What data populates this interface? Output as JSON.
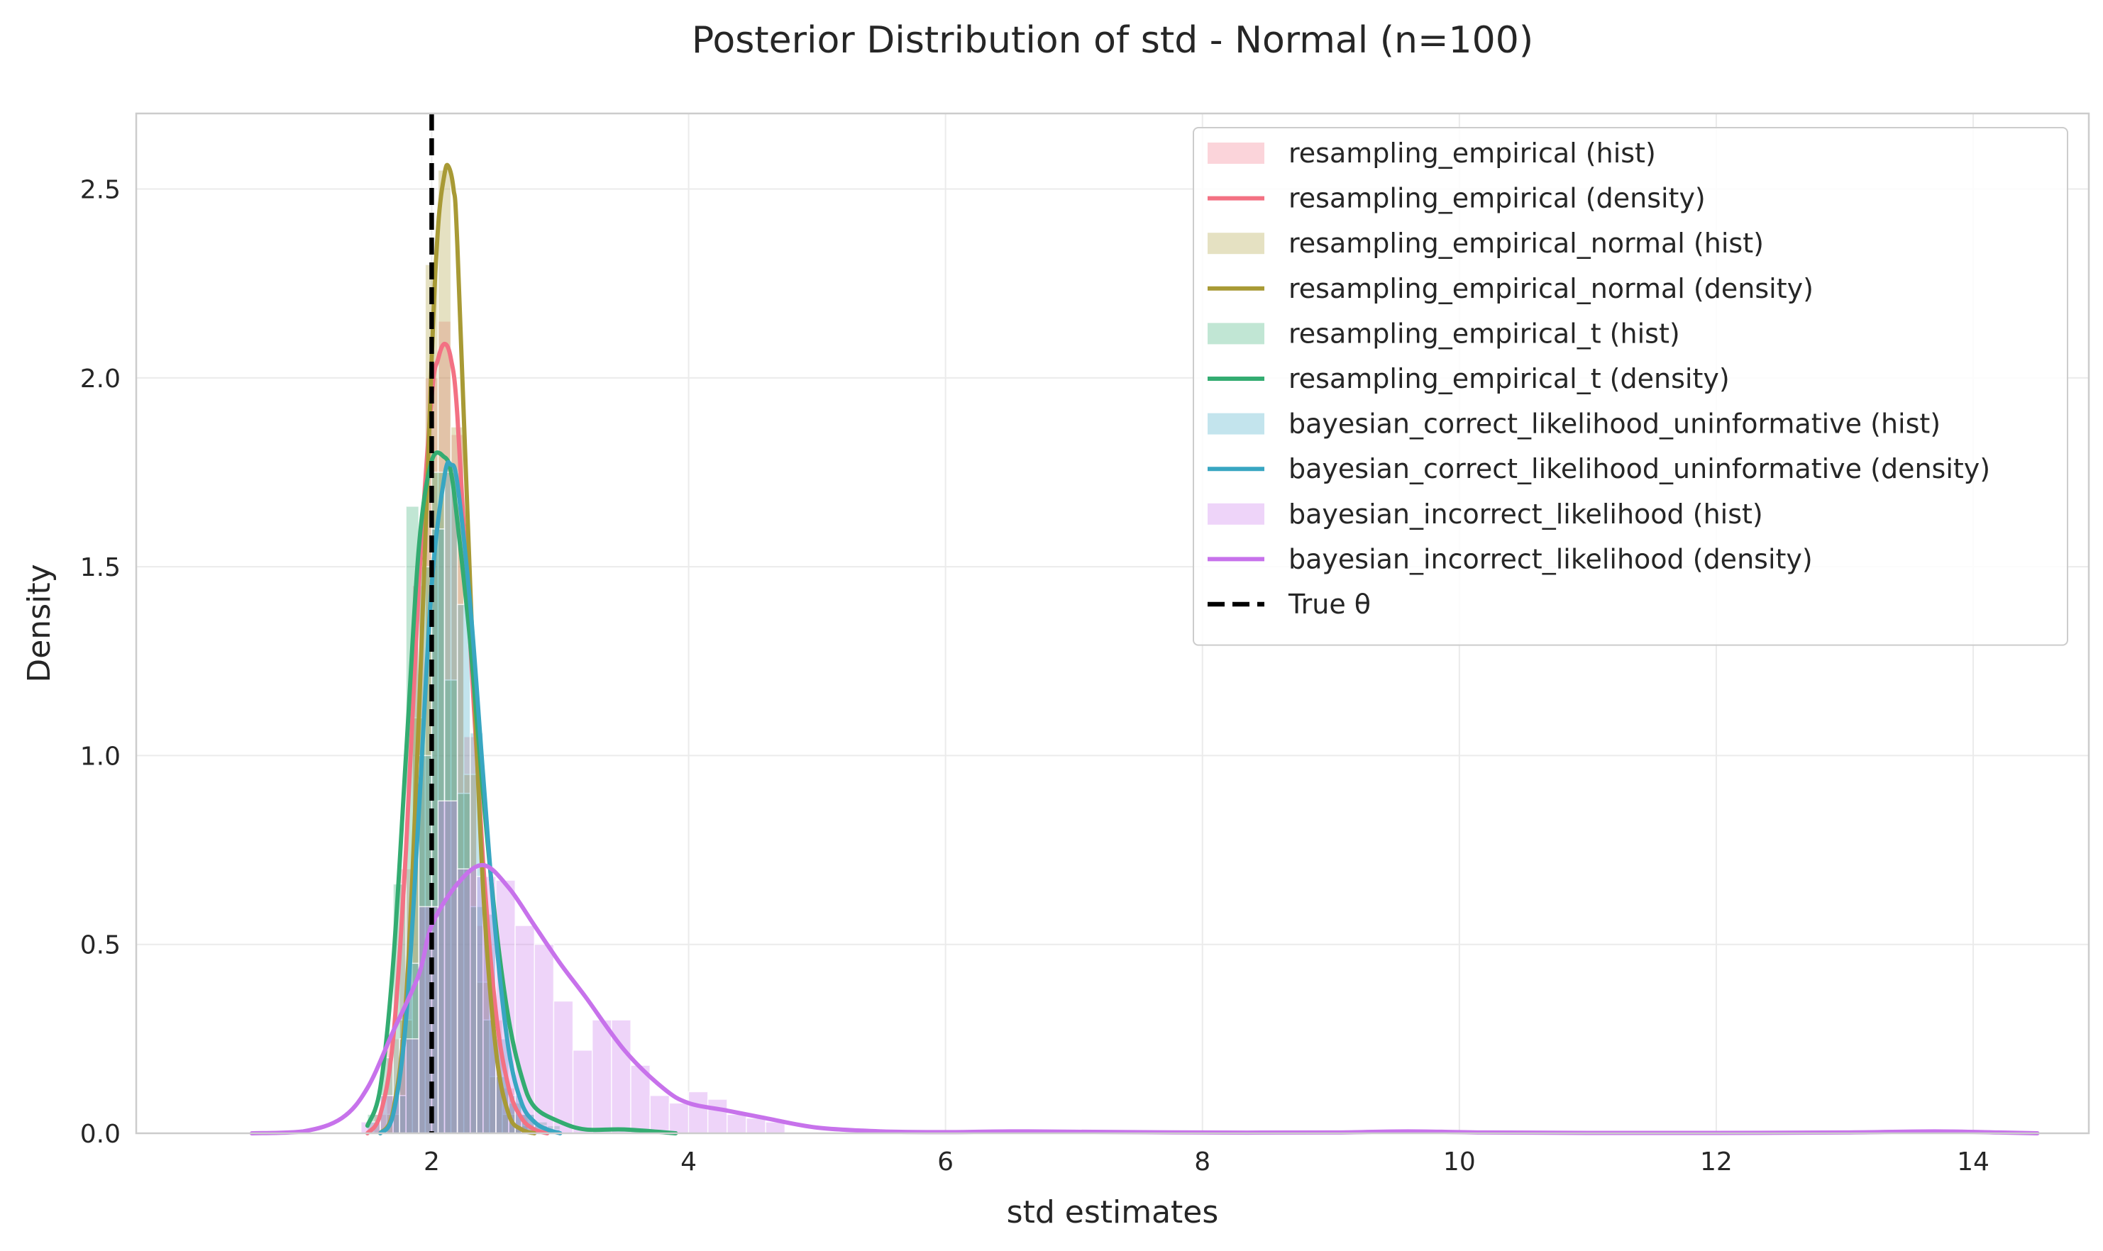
{
  "chart_data": {
    "type": "histogram+density",
    "title": "Posterior Distribution of std - Normal (n=100)",
    "xlabel": "std estimates",
    "ylabel": "Density",
    "xlim": [
      -0.3,
      14.9
    ],
    "ylim": [
      0,
      2.7
    ],
    "xticks": [
      2,
      4,
      6,
      8,
      10,
      12,
      14
    ],
    "yticks": [
      0.0,
      0.5,
      1.0,
      1.5,
      2.0,
      2.5
    ],
    "xtick_labels": [
      "2",
      "4",
      "6",
      "8",
      "10",
      "12",
      "14"
    ],
    "ytick_labels": [
      "0.0",
      "0.5",
      "1.0",
      "1.5",
      "2.0",
      "2.5"
    ],
    "grid": true,
    "legend_position": "top-right",
    "true_theta": {
      "value": 2.0,
      "label": "True θ",
      "color": "#000000"
    },
    "series": [
      {
        "key": "re",
        "color": "#f37183",
        "hist_label": "resampling_empirical (hist)",
        "density_label": "resampling_empirical (density)",
        "hist": {
          "bin_edges": [
            1.55,
            1.65,
            1.75,
            1.85,
            1.95,
            2.05,
            2.15,
            2.25,
            2.35,
            2.45,
            2.55,
            2.65,
            2.75
          ],
          "heights": [
            0.05,
            0.25,
            0.7,
            1.45,
            2.0,
            2.15,
            1.85,
            1.05,
            0.55,
            0.3,
            0.12,
            0.05
          ]
        },
        "density": {
          "x": [
            1.5,
            1.6,
            1.7,
            1.8,
            1.9,
            2.0,
            2.05,
            2.1,
            2.15,
            2.2,
            2.3,
            2.4,
            2.5,
            2.6,
            2.7,
            2.8,
            2.9
          ],
          "y": [
            0.0,
            0.05,
            0.25,
            0.75,
            1.45,
            1.95,
            2.05,
            2.09,
            2.05,
            1.9,
            1.3,
            0.72,
            0.32,
            0.12,
            0.04,
            0.01,
            0.0
          ]
        }
      },
      {
        "key": "ren",
        "color": "#a89a35",
        "hist_label": "resampling_empirical_normal (hist)",
        "density_label": "resampling_empirical_normal (density)",
        "hist": {
          "bin_edges": [
            1.65,
            1.75,
            1.85,
            1.95,
            2.05,
            2.15,
            2.25,
            2.35,
            2.45,
            2.55,
            2.65,
            2.75
          ],
          "heights": [
            0.05,
            0.3,
            1.1,
            2.3,
            2.55,
            1.87,
            0.95,
            0.4,
            0.15,
            0.05,
            0.02
          ]
        },
        "density": {
          "x": [
            1.6,
            1.7,
            1.8,
            1.9,
            2.0,
            2.05,
            2.1,
            2.13,
            2.17,
            2.2,
            2.3,
            2.4,
            2.5,
            2.6,
            2.7,
            2.8
          ],
          "y": [
            0.0,
            0.06,
            0.35,
            1.1,
            2.05,
            2.4,
            2.54,
            2.56,
            2.5,
            2.35,
            1.45,
            0.65,
            0.22,
            0.05,
            0.01,
            0.0
          ]
        }
      },
      {
        "key": "ret",
        "color": "#33ac71",
        "hist_label": "resampling_empirical_t (hist)",
        "density_label": "resampling_empirical_t (density)",
        "hist": {
          "bin_edges": [
            1.5,
            1.6,
            1.7,
            1.8,
            1.9,
            2.0,
            2.1,
            2.2,
            2.3,
            2.4,
            2.5,
            2.6,
            2.7,
            2.8,
            2.9,
            3.0
          ],
          "heights": [
            0.05,
            0.2,
            0.66,
            1.66,
            1.5,
            1.75,
            1.2,
            0.9,
            0.6,
            0.3,
            0.15,
            0.08,
            0.05,
            0.03,
            0.02
          ]
        },
        "density": {
          "x": [
            1.5,
            1.6,
            1.7,
            1.8,
            1.9,
            2.0,
            2.1,
            2.15,
            2.2,
            2.3,
            2.4,
            2.5,
            2.6,
            2.7,
            2.8,
            3.0,
            3.2,
            3.5,
            3.9
          ],
          "y": [
            0.02,
            0.12,
            0.45,
            1.0,
            1.55,
            1.78,
            1.79,
            1.75,
            1.62,
            1.3,
            0.9,
            0.55,
            0.3,
            0.15,
            0.07,
            0.03,
            0.01,
            0.01,
            0.0
          ]
        }
      },
      {
        "key": "bcu",
        "color": "#38a6c2",
        "hist_label": "bayesian_correct_likelihood_uninformative (hist)",
        "density_label": "bayesian_correct_likelihood_uninformative (density)",
        "hist": {
          "bin_edges": [
            1.7,
            1.8,
            1.9,
            2.0,
            2.1,
            2.2,
            2.3,
            2.4,
            2.5,
            2.6,
            2.7,
            2.8,
            2.9,
            3.0
          ],
          "heights": [
            0.1,
            0.45,
            1.0,
            1.6,
            1.75,
            1.4,
            1.06,
            0.58,
            0.25,
            0.1,
            0.05,
            0.02,
            0.01
          ]
        },
        "density": {
          "x": [
            1.6,
            1.7,
            1.8,
            1.9,
            2.0,
            2.1,
            2.15,
            2.2,
            2.3,
            2.4,
            2.5,
            2.6,
            2.7,
            2.8,
            2.9,
            3.0
          ],
          "y": [
            0.0,
            0.05,
            0.3,
            0.85,
            1.45,
            1.74,
            1.77,
            1.72,
            1.4,
            0.95,
            0.52,
            0.22,
            0.08,
            0.03,
            0.01,
            0.0
          ]
        }
      },
      {
        "key": "bil",
        "color": "#c772eb",
        "hist_label": "bayesian_incorrect_likelihood (hist)",
        "density_label": "bayesian_incorrect_likelihood (density)",
        "hist": {
          "bin_edges": [
            1.45,
            1.6,
            1.75,
            1.9,
            2.05,
            2.2,
            2.35,
            2.5,
            2.65,
            2.8,
            2.95,
            3.1,
            3.25,
            3.4,
            3.55,
            3.7,
            3.85,
            4.0,
            4.15,
            4.3,
            4.45,
            4.6,
            4.75
          ],
          "heights": [
            0.03,
            0.1,
            0.25,
            0.6,
            0.88,
            0.7,
            0.68,
            0.67,
            0.55,
            0.5,
            0.35,
            0.22,
            0.3,
            0.3,
            0.18,
            0.1,
            0.08,
            0.11,
            0.09,
            0.05,
            0.04,
            0.03
          ]
        },
        "density": {
          "x": [
            0.6,
            1.0,
            1.3,
            1.5,
            1.7,
            1.9,
            2.0,
            2.2,
            2.4,
            2.6,
            2.8,
            3.0,
            3.2,
            3.5,
            3.8,
            4.0,
            4.3,
            4.6,
            5.0,
            5.5,
            6.0,
            6.5,
            7.0,
            8.0,
            9.0,
            9.6,
            10.2,
            11.0,
            12.0,
            13.0,
            13.7,
            14.2,
            14.5
          ],
          "y": [
            0.0,
            0.005,
            0.04,
            0.12,
            0.27,
            0.42,
            0.55,
            0.66,
            0.71,
            0.65,
            0.55,
            0.45,
            0.36,
            0.22,
            0.12,
            0.08,
            0.06,
            0.04,
            0.015,
            0.005,
            0.003,
            0.005,
            0.004,
            0.002,
            0.002,
            0.005,
            0.002,
            0.001,
            0.001,
            0.002,
            0.005,
            0.002,
            0.0
          ]
        }
      }
    ]
  }
}
